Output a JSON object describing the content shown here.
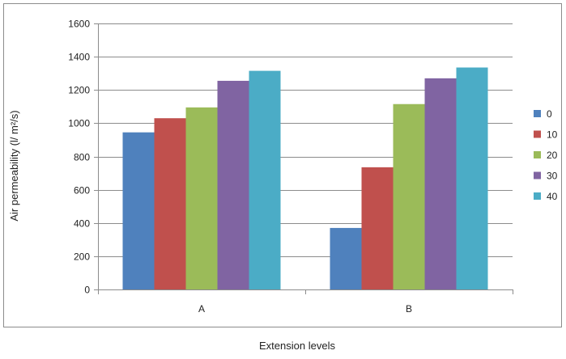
{
  "chart_data": {
    "type": "bar",
    "categories": [
      "A",
      "B"
    ],
    "series": [
      {
        "name": "0",
        "values": [
          945,
          370
        ],
        "color": "#4F81BD"
      },
      {
        "name": "10",
        "values": [
          1030,
          735
        ],
        "color": "#C0504D"
      },
      {
        "name": "20",
        "values": [
          1095,
          1115
        ],
        "color": "#9BBB59"
      },
      {
        "name": "30",
        "values": [
          1255,
          1270
        ],
        "color": "#8064A2"
      },
      {
        "name": "40",
        "values": [
          1315,
          1335
        ],
        "color": "#4BACC6"
      }
    ],
    "xlabel": "Extension levels",
    "ylabel": "Air permeability (l/ m²/s)",
    "ylim": [
      0,
      1600
    ],
    "yticks": [
      0,
      200,
      400,
      600,
      800,
      1000,
      1200,
      1400,
      1600
    ],
    "grid": true,
    "legend_position": "right"
  }
}
